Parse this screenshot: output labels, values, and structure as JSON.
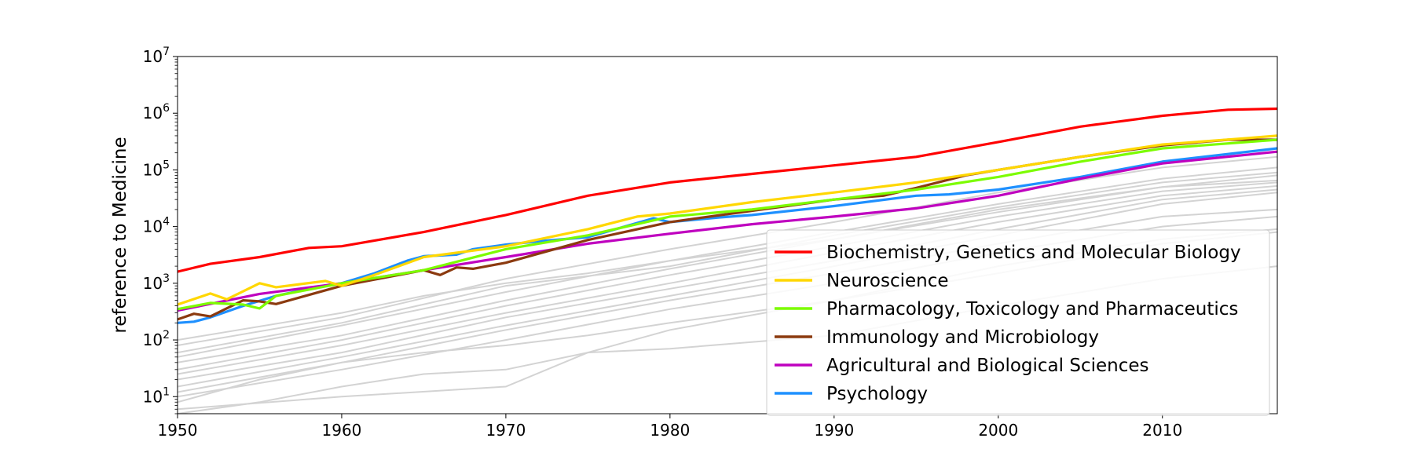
{
  "chart_data": {
    "type": "line",
    "title": "",
    "xlabel": "",
    "ylabel": "reference to Medicine",
    "yscale": "log",
    "xlim": [
      1950,
      2017
    ],
    "ylim": [
      5,
      10000000
    ],
    "xticks": [
      1950,
      1960,
      1970,
      1980,
      1990,
      2000,
      2010
    ],
    "yticks": [
      {
        "value": 10,
        "base": "10",
        "exp": "1"
      },
      {
        "value": 100,
        "base": "10",
        "exp": "2"
      },
      {
        "value": 1000,
        "base": "10",
        "exp": "3"
      },
      {
        "value": 10000,
        "base": "10",
        "exp": "4"
      },
      {
        "value": 100000,
        "base": "10",
        "exp": "5"
      },
      {
        "value": 1000000,
        "base": "10",
        "exp": "6"
      },
      {
        "value": 10000000,
        "base": "10",
        "exp": "7"
      }
    ],
    "grid": false,
    "legend_position": "lower-right",
    "background_series": {
      "color": "#d3d3d3",
      "series": [
        {
          "x": [
            1950,
            1960,
            1970,
            1980,
            1990,
            2000,
            2010,
            2017
          ],
          "values": [
            80,
            250,
            1200,
            4000,
            12000,
            40000,
            110000,
            170000
          ]
        },
        {
          "x": [
            1950,
            1960,
            1970,
            1980,
            1990,
            2000,
            2010,
            2017
          ],
          "values": [
            50,
            180,
            700,
            2500,
            8000,
            25000,
            70000,
            110000
          ]
        },
        {
          "x": [
            1950,
            1960,
            1970,
            1980,
            1990,
            2000,
            2010,
            2017
          ],
          "values": [
            40,
            120,
            500,
            1800,
            6000,
            20000,
            50000,
            80000
          ]
        },
        {
          "x": [
            1950,
            1960,
            1970,
            1980,
            1990,
            2000,
            2010,
            2017
          ],
          "values": [
            30,
            100,
            400,
            1400,
            4500,
            15000,
            42000,
            60000
          ]
        },
        {
          "x": [
            1950,
            1960,
            1970,
            1980,
            1990,
            2000,
            2010,
            2017
          ],
          "values": [
            25,
            80,
            300,
            1000,
            3500,
            12000,
            35000,
            52000
          ]
        },
        {
          "x": [
            1950,
            1960,
            1970,
            1980,
            1990,
            2000,
            2010,
            2017
          ],
          "values": [
            20,
            60,
            250,
            800,
            2500,
            9000,
            30000,
            45000
          ]
        },
        {
          "x": [
            1950,
            1960,
            1970,
            1980,
            1990,
            2000,
            2010,
            2017
          ],
          "values": [
            15,
            50,
            180,
            600,
            2000,
            7000,
            25000,
            40000
          ]
        },
        {
          "x": [
            1950,
            1960,
            1970,
            1980,
            1990,
            2000,
            2010,
            2017
          ],
          "values": [
            12,
            40,
            150,
            500,
            1500,
            5000,
            15000,
            20000
          ]
        },
        {
          "x": [
            1950,
            1960,
            1970,
            1980,
            1990,
            2000,
            2010,
            2017
          ],
          "values": [
            10,
            30,
            100,
            350,
            1000,
            3500,
            10000,
            15000
          ]
        },
        {
          "x": [
            1950,
            1955,
            1960,
            1965,
            1970,
            1975,
            1980,
            1990,
            2000,
            2010,
            2017
          ],
          "values": [
            8,
            20,
            40,
            60,
            80,
            120,
            200,
            500,
            1500,
            5000,
            8000
          ]
        },
        {
          "x": [
            1950,
            1955,
            1960,
            1965,
            1970,
            1975,
            1980,
            1990,
            2000,
            2010,
            2017
          ],
          "values": [
            5,
            8,
            15,
            25,
            30,
            60,
            70,
            120,
            400,
            1200,
            2000
          ]
        },
        {
          "x": [
            1950,
            1960,
            1970,
            1975,
            1980,
            1990,
            2000,
            2010,
            2017
          ],
          "values": [
            6,
            10,
            15,
            60,
            150,
            500,
            2000,
            6000,
            9000
          ]
        },
        {
          "x": [
            1950,
            1960,
            1965,
            1970,
            1975,
            1980,
            1990,
            2000,
            2010,
            2017
          ],
          "values": [
            100,
            300,
            600,
            1000,
            1500,
            2500,
            6000,
            18000,
            50000,
            65000
          ]
        },
        {
          "x": [
            1950,
            1960,
            1970,
            1980,
            1990,
            2000,
            2010,
            2017
          ],
          "values": [
            60,
            200,
            900,
            2000,
            7000,
            22000,
            60000,
            90000
          ]
        }
      ]
    },
    "series": [
      {
        "name": "Biochemistry, Genetics and Molecular Biology",
        "color": "#ff0000",
        "x": [
          1950,
          1952,
          1955,
          1958,
          1960,
          1965,
          1970,
          1975,
          1980,
          1985,
          1990,
          1995,
          2000,
          2005,
          2010,
          2014,
          2017
        ],
        "values": [
          1600,
          2200,
          2900,
          4200,
          4500,
          8000,
          16000,
          35000,
          60000,
          85000,
          120000,
          170000,
          310000,
          580000,
          900000,
          1150000,
          1200000
        ]
      },
      {
        "name": "Neuroscience",
        "color": "#ffd700",
        "x": [
          1950,
          1952,
          1953,
          1955,
          1956,
          1959,
          1960,
          1962,
          1965,
          1970,
          1975,
          1978,
          1980,
          1985,
          1990,
          1995,
          2000,
          2005,
          2010,
          2015,
          2017
        ],
        "values": [
          420,
          660,
          520,
          1000,
          850,
          1100,
          900,
          1400,
          2900,
          4500,
          9000,
          15000,
          17000,
          27000,
          40000,
          60000,
          100000,
          170000,
          280000,
          360000,
          400000
        ]
      },
      {
        "name": "Pharmacology, Toxicology and Pharmaceutics",
        "color": "#7cfc00",
        "x": [
          1950,
          1952,
          1954,
          1955,
          1956,
          1960,
          1965,
          1970,
          1975,
          1980,
          1985,
          1990,
          1995,
          2000,
          2005,
          2010,
          2017
        ],
        "values": [
          350,
          450,
          420,
          360,
          600,
          1000,
          1700,
          4000,
          7000,
          15000,
          20000,
          30000,
          45000,
          75000,
          140000,
          240000,
          340000
        ]
      },
      {
        "name": "Immunology and Microbiology",
        "color": "#8b3a0f",
        "x": [
          1950,
          1951,
          1952,
          1954,
          1955,
          1956,
          1960,
          1965,
          1966,
          1967,
          1968,
          1970,
          1975,
          1980,
          1985,
          1990,
          1993,
          1995,
          1998,
          2000,
          2005,
          2010,
          2014,
          2017
        ],
        "values": [
          230,
          290,
          260,
          500,
          480,
          430,
          900,
          1700,
          1400,
          1900,
          1800,
          2300,
          5800,
          12000,
          19000,
          30000,
          35000,
          48000,
          80000,
          100000,
          170000,
          270000,
          340000,
          340000
        ]
      },
      {
        "name": "Agricultural and Biological Sciences",
        "color": "#bf00bf",
        "x": [
          1950,
          1955,
          1960,
          1965,
          1970,
          1975,
          1980,
          1985,
          1990,
          1995,
          2000,
          2005,
          2010,
          2017
        ],
        "values": [
          330,
          650,
          1000,
          1700,
          2900,
          5000,
          7500,
          11000,
          15000,
          21000,
          35000,
          70000,
          130000,
          210000
        ]
      },
      {
        "name": "Psychology",
        "color": "#1e90ff",
        "x": [
          1950,
          1951,
          1952,
          1954,
          1956,
          1958,
          1960,
          1962,
          1964,
          1965,
          1967,
          1968,
          1970,
          1972,
          1975,
          1979,
          1980,
          1983,
          1985,
          1990,
          1995,
          1997,
          2000,
          2005,
          2010,
          2017
        ],
        "values": [
          200,
          210,
          250,
          400,
          600,
          800,
          1000,
          1500,
          2500,
          3000,
          3200,
          4000,
          4800,
          5500,
          6500,
          14000,
          12000,
          14500,
          16000,
          23000,
          35000,
          37000,
          45000,
          75000,
          140000,
          240000
        ]
      }
    ]
  }
}
